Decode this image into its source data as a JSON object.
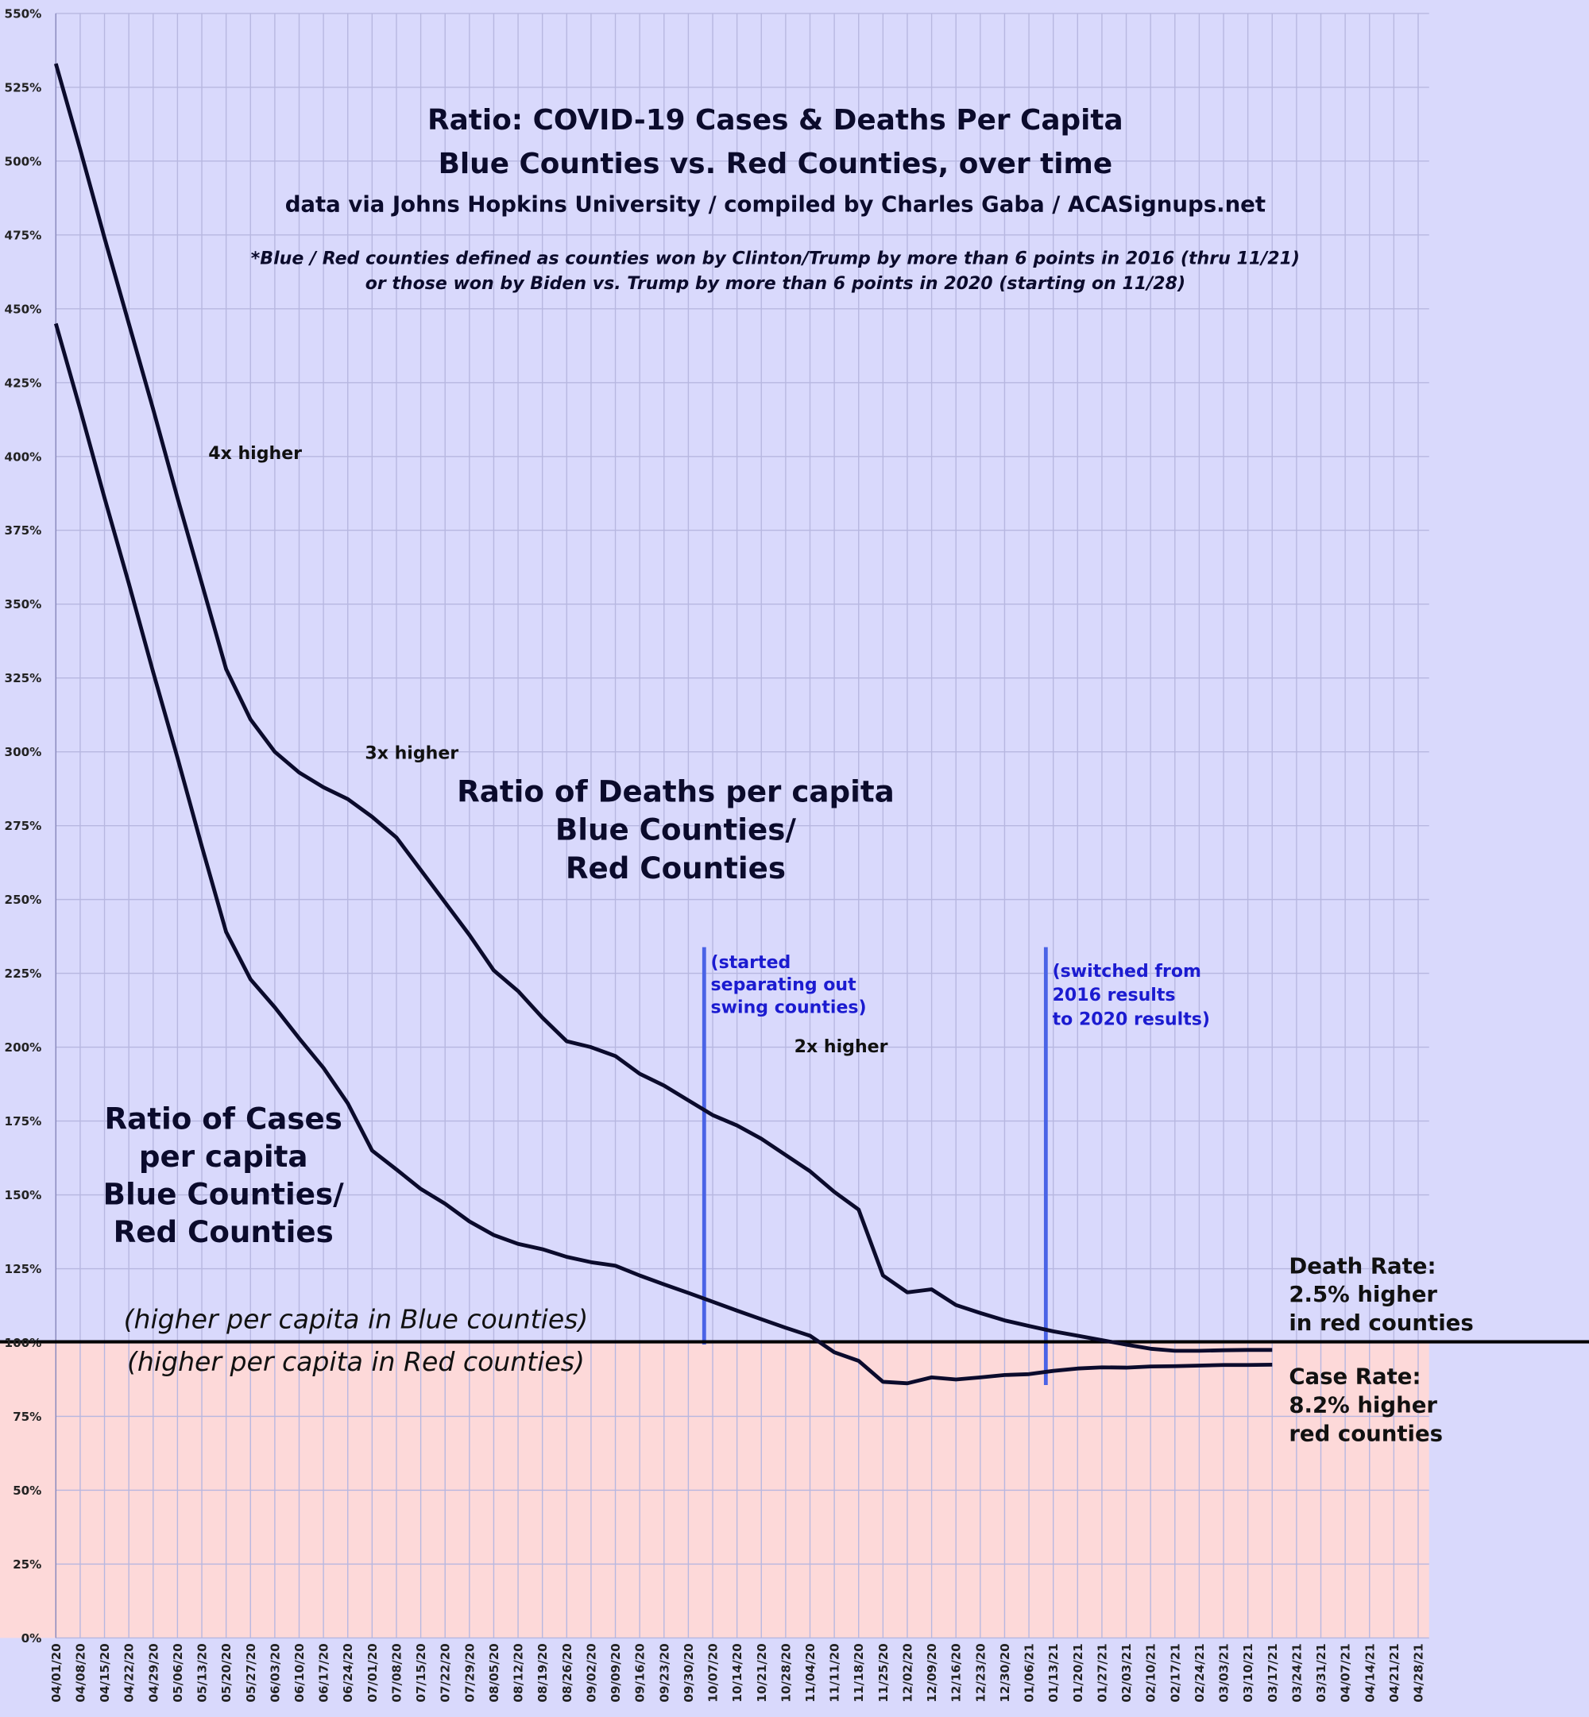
{
  "chart_data": {
    "type": "line",
    "title": [
      "Ratio: COVID-19 Cases & Deaths Per Capita",
      "Blue Counties vs. Red Counties, over time"
    ],
    "subtitle": "data via Johns Hopkins University / compiled by Charles Gaba / ACASignups.net",
    "footnote": [
      "*Blue / Red counties defined as counties won by Clinton/Trump by more than 6 points in 2016 (thru 11/21)",
      "or those won by Biden vs. Trump by more than 6 points in 2020 (starting on 11/28)"
    ],
    "categories": [
      "04/01/20",
      "04/08/20",
      "04/15/20",
      "04/22/20",
      "04/29/20",
      "05/06/20",
      "05/13/20",
      "05/20/20",
      "05/27/20",
      "06/03/20",
      "06/10/20",
      "06/17/20",
      "06/24/20",
      "07/01/20",
      "07/08/20",
      "07/15/20",
      "07/22/20",
      "07/29/20",
      "08/05/20",
      "08/12/20",
      "08/19/20",
      "08/26/20",
      "09/02/20",
      "09/09/20",
      "09/16/20",
      "09/23/20",
      "09/30/20",
      "10/07/20",
      "10/14/20",
      "10/21/20",
      "10/28/20",
      "11/04/20",
      "11/11/20",
      "11/18/20",
      "11/25/20",
      "12/02/20",
      "12/09/20",
      "12/16/20",
      "12/23/20",
      "12/30/20",
      "01/06/21",
      "01/13/21",
      "01/20/21",
      "01/27/21",
      "02/03/21",
      "02/10/21",
      "02/17/21",
      "02/24/21",
      "03/03/21",
      "03/10/21",
      "03/17/21",
      "03/24/21",
      "03/31/21",
      "04/07/21",
      "04/14/21",
      "04/21/21",
      "04/28/21"
    ],
    "series": [
      {
        "color": "#0b0b2c",
        "values": [
          533,
          504,
          474,
          445,
          416,
          386,
          357,
          328,
          311,
          300,
          293,
          288,
          284,
          278,
          271,
          260,
          249,
          238,
          226,
          219,
          210,
          202,
          200,
          197,
          191,
          187,
          182,
          177,
          173.5,
          169,
          163.5,
          158,
          151,
          145,
          122.7,
          117,
          118,
          112.7,
          110,
          107.5,
          105.6,
          103.8,
          102.3,
          100.8,
          99.3,
          97.9,
          97.2,
          97.2,
          97.4,
          97.5,
          97.5,
          null,
          null,
          null,
          null,
          null,
          null
        ]
      },
      {
        "color": "#0b0b2c",
        "values": [
          445,
          416,
          386,
          357,
          327,
          298,
          268,
          239,
          223,
          213.5,
          203,
          193,
          181,
          165,
          158.6,
          152,
          147,
          141,
          136.4,
          133.4,
          131.6,
          129,
          127.2,
          126,
          122.7,
          119.7,
          116.8,
          113.8,
          110.8,
          107.9,
          105,
          102.3,
          96.7,
          93.8,
          86.7,
          86.2,
          88.2,
          87.5,
          88.2,
          89,
          89.3,
          90.4,
          91.2,
          91.6,
          91.5,
          91.9,
          92,
          92.2,
          92.4,
          92.4,
          92.5,
          null,
          null,
          null,
          null,
          null,
          null
        ]
      }
    ],
    "ylim": [
      0,
      550
    ],
    "yticks": [
      {
        "value": 0,
        "label": "0%"
      },
      {
        "value": 25,
        "label": "25%"
      },
      {
        "value": 50,
        "label": "50%"
      },
      {
        "value": 75,
        "label": "75%"
      },
      {
        "value": 100,
        "label": "100%"
      },
      {
        "value": 125,
        "label": "125%"
      },
      {
        "value": 150,
        "label": "150%"
      },
      {
        "value": 175,
        "label": "175%"
      },
      {
        "value": 200,
        "label": "200%"
      },
      {
        "value": 225,
        "label": "225%"
      },
      {
        "value": 250,
        "label": "250%"
      },
      {
        "value": 275,
        "label": "275%"
      },
      {
        "value": 300,
        "label": "300%"
      },
      {
        "value": 325,
        "label": "325%"
      },
      {
        "value": 350,
        "label": "350%"
      },
      {
        "value": 375,
        "label": "375%"
      },
      {
        "value": 400,
        "label": "400%"
      },
      {
        "value": 425,
        "label": "425%"
      },
      {
        "value": 450,
        "label": "450%"
      },
      {
        "value": 475,
        "label": "475%"
      },
      {
        "value": 500,
        "label": "500%"
      },
      {
        "value": 525,
        "label": "525%"
      },
      {
        "value": 550,
        "label": "550%"
      }
    ],
    "grid": true,
    "annotations": [
      {
        "lines": [
          "4x higher"
        ]
      },
      {
        "lines": [
          "3x higher"
        ]
      },
      {
        "lines": [
          "2x higher"
        ]
      },
      {
        "lines": [
          "Ratio of Deaths per capita",
          "Blue Counties/",
          "Red Counties"
        ]
      },
      {
        "lines": [
          "Ratio of Cases",
          "per capita",
          "Blue Counties/",
          "Red Counties"
        ]
      },
      {
        "lines": [
          "(higher per capita in Blue counties)"
        ]
      },
      {
        "lines": [
          "(higher per capita in Red counties)"
        ]
      },
      {
        "lines": [
          "(started",
          "separating out",
          "swing counties)"
        ]
      },
      {
        "lines": [
          "(switched from",
          "2016 results",
          "to 2020 results)"
        ]
      },
      {
        "lines": [
          "Death Rate:",
          "2.5% higher",
          "in red counties"
        ]
      },
      {
        "lines": [
          "Case Rate:",
          "8.2% higher",
          "red counties"
        ]
      }
    ]
  }
}
